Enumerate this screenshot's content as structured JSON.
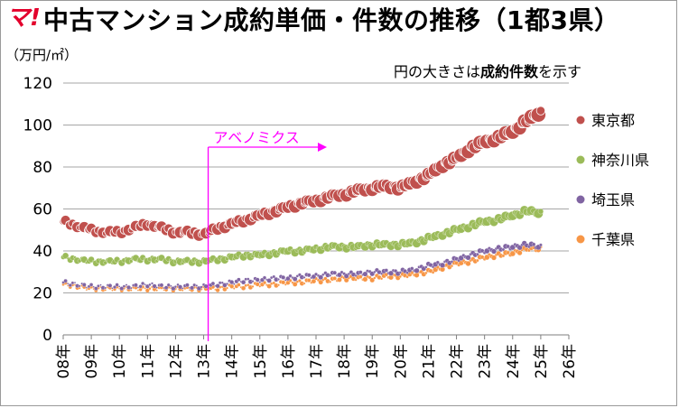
{
  "header": {
    "logo_mark": "マ!",
    "title": "中古マンション成約単価・件数の推移（1都3県）",
    "unit": "（万円/㎡）",
    "note_prefix": "円の大きさは",
    "note_bold": "成約件数",
    "note_suffix": "を示す"
  },
  "colors": {
    "tokyo": "#c0504d",
    "kanagawa": "#9bbb59",
    "saitama": "#8064a2",
    "chiba": "#f79646",
    "annotation": "#ff00ff",
    "logo": "#e3002c"
  },
  "chart_data": {
    "type": "scatter",
    "encoding": "bubble",
    "title": "中古マンション成約単価・件数の推移（1都3県）",
    "ylabel": "（万円/㎡）",
    "ylim": [
      0,
      120
    ],
    "y_ticks": [
      "0",
      "20",
      "40",
      "60",
      "80",
      "100",
      "120"
    ],
    "x_ticks": [
      "08年",
      "09年",
      "10年",
      "11年",
      "12年",
      "13年",
      "14年",
      "15年",
      "16年",
      "17年",
      "18年",
      "19年",
      "20年",
      "21年",
      "22年",
      "23年",
      "24年",
      "25年",
      "26年"
    ],
    "xlim": [
      "2008-01",
      "2026-01"
    ],
    "grid": true,
    "legend_position": "right",
    "annotation": {
      "label": "アベノミクス",
      "at": "2013-01"
    },
    "series": [
      {
        "name": "東京都",
        "color": "#c0504d",
        "size_scale": "large",
        "points": [
          [
            "2008-01",
            54
          ],
          [
            "2008-07",
            52
          ],
          [
            "2009-01",
            50
          ],
          [
            "2009-07",
            49
          ],
          [
            "2010-01",
            49
          ],
          [
            "2010-07",
            51
          ],
          [
            "2011-01",
            53
          ],
          [
            "2011-07",
            51
          ],
          [
            "2012-01",
            49
          ],
          [
            "2012-07",
            49
          ],
          [
            "2013-01",
            48
          ],
          [
            "2013-07",
            51
          ],
          [
            "2014-01",
            53
          ],
          [
            "2014-07",
            55
          ],
          [
            "2015-01",
            57
          ],
          [
            "2015-07",
            59
          ],
          [
            "2016-01",
            61
          ],
          [
            "2016-07",
            63
          ],
          [
            "2017-01",
            64
          ],
          [
            "2017-07",
            66
          ],
          [
            "2018-01",
            67
          ],
          [
            "2018-07",
            69
          ],
          [
            "2019-01",
            70
          ],
          [
            "2019-07",
            71
          ],
          [
            "2020-01",
            70
          ],
          [
            "2020-07",
            73
          ],
          [
            "2021-01",
            76
          ],
          [
            "2021-07",
            81
          ],
          [
            "2022-01",
            84
          ],
          [
            "2022-07",
            89
          ],
          [
            "2023-01",
            92
          ],
          [
            "2023-07",
            94
          ],
          [
            "2024-01",
            97
          ],
          [
            "2024-07",
            102
          ],
          [
            "2025-01",
            106
          ]
        ]
      },
      {
        "name": "神奈川県",
        "color": "#9bbb59",
        "size_scale": "medium",
        "points": [
          [
            "2008-01",
            37
          ],
          [
            "2008-07",
            36
          ],
          [
            "2009-01",
            35
          ],
          [
            "2009-07",
            35
          ],
          [
            "2010-01",
            35
          ],
          [
            "2010-07",
            36
          ],
          [
            "2011-01",
            36
          ],
          [
            "2011-07",
            36
          ],
          [
            "2012-01",
            35
          ],
          [
            "2012-07",
            35
          ],
          [
            "2013-01",
            35
          ],
          [
            "2013-07",
            36
          ],
          [
            "2014-01",
            37
          ],
          [
            "2014-07",
            38
          ],
          [
            "2015-01",
            38
          ],
          [
            "2015-07",
            39
          ],
          [
            "2016-01",
            40
          ],
          [
            "2016-07",
            40
          ],
          [
            "2017-01",
            41
          ],
          [
            "2017-07",
            42
          ],
          [
            "2018-01",
            42
          ],
          [
            "2018-07",
            42
          ],
          [
            "2019-01",
            43
          ],
          [
            "2019-07",
            43
          ],
          [
            "2020-01",
            43
          ],
          [
            "2020-07",
            44
          ],
          [
            "2021-01",
            46
          ],
          [
            "2021-07",
            48
          ],
          [
            "2022-01",
            50
          ],
          [
            "2022-07",
            52
          ],
          [
            "2023-01",
            54
          ],
          [
            "2023-07",
            55
          ],
          [
            "2024-01",
            57
          ],
          [
            "2024-07",
            59
          ],
          [
            "2025-01",
            58
          ]
        ]
      },
      {
        "name": "埼玉県",
        "color": "#8064a2",
        "size_scale": "small",
        "points": [
          [
            "2008-01",
            25
          ],
          [
            "2008-07",
            24
          ],
          [
            "2009-01",
            23
          ],
          [
            "2009-07",
            23
          ],
          [
            "2010-01",
            23
          ],
          [
            "2010-07",
            23
          ],
          [
            "2011-01",
            24
          ],
          [
            "2011-07",
            23
          ],
          [
            "2012-01",
            23
          ],
          [
            "2012-07",
            23
          ],
          [
            "2013-01",
            23
          ],
          [
            "2013-07",
            24
          ],
          [
            "2014-01",
            25
          ],
          [
            "2014-07",
            26
          ],
          [
            "2015-01",
            26
          ],
          [
            "2015-07",
            27
          ],
          [
            "2016-01",
            27
          ],
          [
            "2016-07",
            28
          ],
          [
            "2017-01",
            28
          ],
          [
            "2017-07",
            29
          ],
          [
            "2018-01",
            29
          ],
          [
            "2018-07",
            29
          ],
          [
            "2019-01",
            30
          ],
          [
            "2019-07",
            30
          ],
          [
            "2020-01",
            30
          ],
          [
            "2020-07",
            31
          ],
          [
            "2021-01",
            33
          ],
          [
            "2021-07",
            34
          ],
          [
            "2022-01",
            36
          ],
          [
            "2022-07",
            38
          ],
          [
            "2023-01",
            40
          ],
          [
            "2023-07",
            41
          ],
          [
            "2024-01",
            42
          ],
          [
            "2024-07",
            43
          ],
          [
            "2025-01",
            42
          ]
        ]
      },
      {
        "name": "千葉県",
        "color": "#f79646",
        "size_scale": "small",
        "points": [
          [
            "2008-01",
            24
          ],
          [
            "2008-07",
            23
          ],
          [
            "2009-01",
            22
          ],
          [
            "2009-07",
            22
          ],
          [
            "2010-01",
            22
          ],
          [
            "2010-07",
            22
          ],
          [
            "2011-01",
            22
          ],
          [
            "2011-07",
            22
          ],
          [
            "2012-01",
            22
          ],
          [
            "2012-07",
            22
          ],
          [
            "2013-01",
            22
          ],
          [
            "2013-07",
            22
          ],
          [
            "2014-01",
            23
          ],
          [
            "2014-07",
            23
          ],
          [
            "2015-01",
            24
          ],
          [
            "2015-07",
            24
          ],
          [
            "2016-01",
            25
          ],
          [
            "2016-07",
            25
          ],
          [
            "2017-01",
            26
          ],
          [
            "2017-07",
            26
          ],
          [
            "2018-01",
            27
          ],
          [
            "2018-07",
            27
          ],
          [
            "2019-01",
            27
          ],
          [
            "2019-07",
            28
          ],
          [
            "2020-01",
            28
          ],
          [
            "2020-07",
            29
          ],
          [
            "2021-01",
            30
          ],
          [
            "2021-07",
            32
          ],
          [
            "2022-01",
            34
          ],
          [
            "2022-07",
            35
          ],
          [
            "2023-01",
            37
          ],
          [
            "2023-07",
            38
          ],
          [
            "2024-01",
            39
          ],
          [
            "2024-07",
            41
          ],
          [
            "2025-01",
            41
          ]
        ]
      }
    ]
  }
}
